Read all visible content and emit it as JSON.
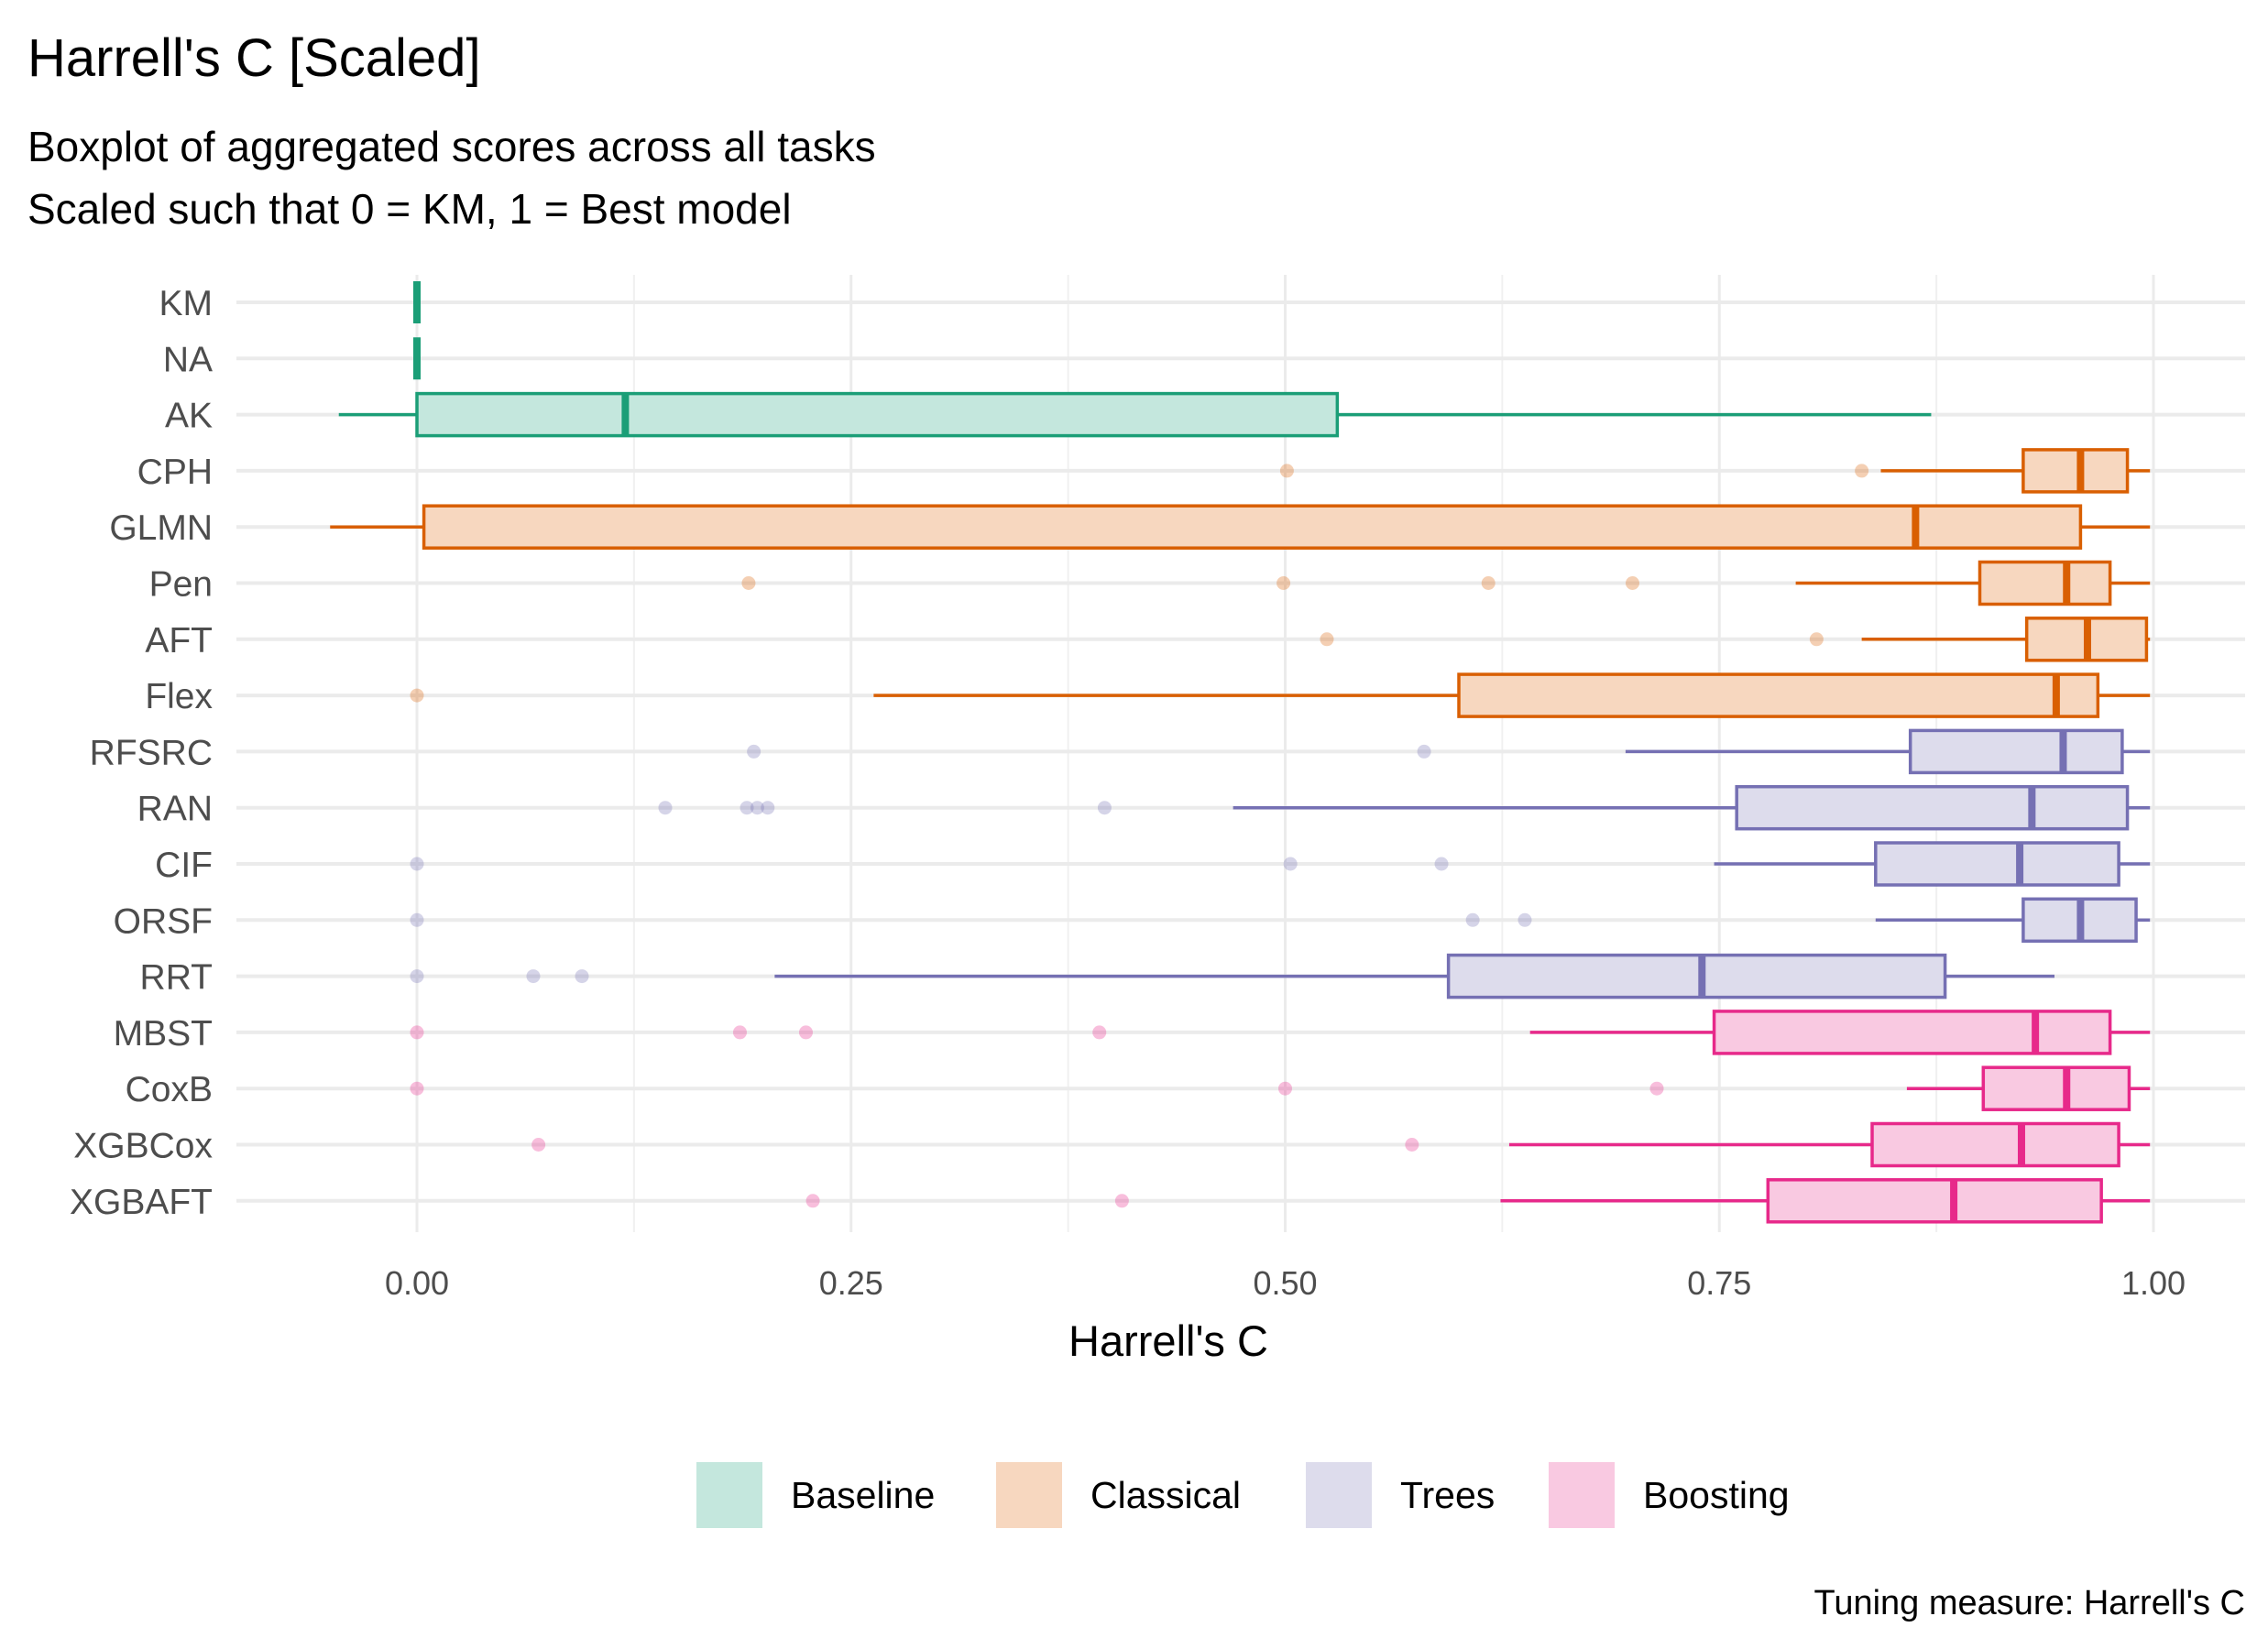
{
  "chart_data": {
    "type": "boxplot",
    "orientation": "horizontal",
    "title": "Harrell's C [Scaled]",
    "subtitle_lines": [
      "Boxplot of aggregated scores across all tasks",
      "Scaled such that 0 = KM, 1 = Best model"
    ],
    "xlabel": "Harrell's C",
    "caption": "Tuning measure: Harrell's C",
    "xlim": [
      -0.1,
      1.05
    ],
    "xticks": [
      0.0,
      0.25,
      0.5,
      0.75,
      1.0
    ],
    "xtick_labels": [
      "0.00",
      "0.25",
      "0.50",
      "0.75",
      "1.00"
    ],
    "grid": true,
    "legend_position": "bottom",
    "groups": [
      {
        "name": "Baseline",
        "color": "#1b9e77",
        "fill": "#c4e7dd"
      },
      {
        "name": "Classical",
        "color": "#d95f02",
        "fill": "#f7d7bf"
      },
      {
        "name": "Trees",
        "color": "#7570b3",
        "fill": "#dddcec"
      },
      {
        "name": "Boosting",
        "color": "#e7298a",
        "fill": "#f9c9e1"
      }
    ],
    "models": [
      {
        "name": "KM",
        "group": "Baseline",
        "lower_whisker": 0.0,
        "q1": 0.0,
        "median": 0.0,
        "q3": 0.0,
        "upper_whisker": 0.0,
        "outliers": []
      },
      {
        "name": "NA",
        "group": "Baseline",
        "lower_whisker": 0.0,
        "q1": 0.0,
        "median": 0.0,
        "q3": 0.0,
        "upper_whisker": 0.0,
        "outliers": []
      },
      {
        "name": "AK",
        "group": "Baseline",
        "lower_whisker": -0.045,
        "q1": 0.0,
        "median": 0.12,
        "q3": 0.53,
        "upper_whisker": 0.872,
        "outliers": []
      },
      {
        "name": "CPH",
        "group": "Classical",
        "lower_whisker": 0.843,
        "q1": 0.925,
        "median": 0.958,
        "q3": 0.985,
        "upper_whisker": 0.998,
        "outliers": [
          0.501,
          0.832
        ]
      },
      {
        "name": "GLMN",
        "group": "Classical",
        "lower_whisker": -0.05,
        "q1": 0.004,
        "median": 0.863,
        "q3": 0.958,
        "upper_whisker": 0.998,
        "outliers": []
      },
      {
        "name": "Pen",
        "group": "Classical",
        "lower_whisker": 0.794,
        "q1": 0.9,
        "median": 0.95,
        "q3": 0.975,
        "upper_whisker": 0.998,
        "outliers": [
          0.191,
          0.499,
          0.617,
          0.7
        ]
      },
      {
        "name": "AFT",
        "group": "Classical",
        "lower_whisker": 0.832,
        "q1": 0.927,
        "median": 0.962,
        "q3": 0.996,
        "upper_whisker": 0.998,
        "outliers": [
          0.524,
          0.806
        ]
      },
      {
        "name": "Flex",
        "group": "Classical",
        "lower_whisker": 0.263,
        "q1": 0.6,
        "median": 0.944,
        "q3": 0.968,
        "upper_whisker": 0.998,
        "outliers": [
          0.0
        ]
      },
      {
        "name": "RFSRC",
        "group": "Trees",
        "lower_whisker": 0.696,
        "q1": 0.86,
        "median": 0.948,
        "q3": 0.982,
        "upper_whisker": 0.998,
        "outliers": [
          0.194,
          0.58
        ]
      },
      {
        "name": "RAN",
        "group": "Trees",
        "lower_whisker": 0.47,
        "q1": 0.76,
        "median": 0.93,
        "q3": 0.985,
        "upper_whisker": 0.998,
        "outliers": [
          0.143,
          0.19,
          0.196,
          0.202,
          0.396
        ]
      },
      {
        "name": "CIF",
        "group": "Trees",
        "lower_whisker": 0.747,
        "q1": 0.84,
        "median": 0.923,
        "q3": 0.98,
        "upper_whisker": 0.998,
        "outliers": [
          0.0,
          0.503,
          0.59
        ]
      },
      {
        "name": "ORSF",
        "group": "Trees",
        "lower_whisker": 0.84,
        "q1": 0.925,
        "median": 0.958,
        "q3": 0.99,
        "upper_whisker": 0.998,
        "outliers": [
          0.0,
          0.608,
          0.638
        ]
      },
      {
        "name": "RRT",
        "group": "Trees",
        "lower_whisker": 0.206,
        "q1": 0.594,
        "median": 0.74,
        "q3": 0.88,
        "upper_whisker": 0.943,
        "outliers": [
          0.0,
          0.067,
          0.095
        ]
      },
      {
        "name": "MBST",
        "group": "Boosting",
        "lower_whisker": 0.641,
        "q1": 0.747,
        "median": 0.932,
        "q3": 0.975,
        "upper_whisker": 0.998,
        "outliers": [
          0.0,
          0.186,
          0.224,
          0.393
        ]
      },
      {
        "name": "CoxB",
        "group": "Boosting",
        "lower_whisker": 0.858,
        "q1": 0.902,
        "median": 0.95,
        "q3": 0.986,
        "upper_whisker": 0.998,
        "outliers": [
          0.0,
          0.5,
          0.714
        ]
      },
      {
        "name": "XGBCox",
        "group": "Boosting",
        "lower_whisker": 0.629,
        "q1": 0.838,
        "median": 0.924,
        "q3": 0.98,
        "upper_whisker": 0.998,
        "outliers": [
          0.07,
          0.573
        ]
      },
      {
        "name": "XGBAFT",
        "group": "Boosting",
        "lower_whisker": 0.624,
        "q1": 0.778,
        "median": 0.885,
        "q3": 0.97,
        "upper_whisker": 0.998,
        "outliers": [
          0.228,
          0.406
        ]
      }
    ]
  }
}
